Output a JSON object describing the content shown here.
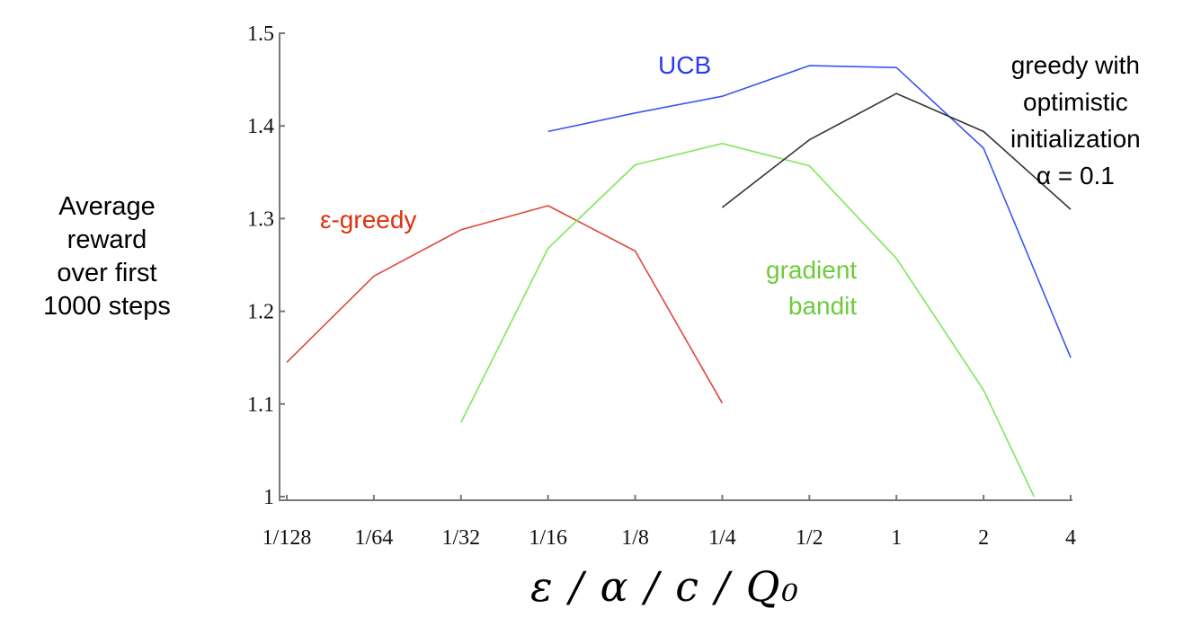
{
  "chart_data": {
    "type": "line",
    "title": "",
    "xlabel": "ε / α / c / Q0",
    "ylabel": "Average reward over first 1000 steps",
    "ylim": [
      1.0,
      1.5
    ],
    "yticks": [
      "1",
      "1.1",
      "1.2",
      "1.3",
      "1.4",
      "1.5"
    ],
    "ytick_values": [
      1.0,
      1.1,
      1.2,
      1.3,
      1.4,
      1.5
    ],
    "categories": [
      "1/128",
      "1/64",
      "1/32",
      "1/16",
      "1/8",
      "1/4",
      "1/2",
      "1",
      "2",
      "4"
    ],
    "grid": false,
    "legend_position": "inline annotations",
    "series": [
      {
        "name": "ε-greedy",
        "color": "#e0473a",
        "label_color": "#e03010",
        "x_index": [
          0,
          1,
          2,
          3,
          4,
          5
        ],
        "values": [
          1.145,
          1.238,
          1.288,
          1.314,
          1.265,
          1.101
        ]
      },
      {
        "name": "gradient bandit",
        "color": "#7ee85a",
        "label_color": "#6ccc3a",
        "x_index": [
          2,
          3,
          4,
          5,
          6,
          7,
          8,
          8.58
        ],
        "values": [
          1.08,
          1.268,
          1.358,
          1.381,
          1.357,
          1.257,
          1.115,
          1.0
        ]
      },
      {
        "name": "UCB",
        "color": "#3a55f0",
        "label_color": "#2a3cf0",
        "x_index": [
          3,
          4,
          5,
          6,
          7,
          8,
          9
        ],
        "values": [
          1.394,
          1.414,
          1.432,
          1.465,
          1.463,
          1.376,
          1.15
        ]
      },
      {
        "name": "greedy with optimistic initialization α = 0.1",
        "color": "#333333",
        "label_color": "#000000",
        "x_index": [
          5,
          6,
          7,
          8,
          9
        ],
        "values": [
          1.312,
          1.385,
          1.435,
          1.394,
          1.31
        ]
      }
    ]
  },
  "labels": {
    "ylabel_lines": [
      "Average",
      "reward",
      "over first",
      "1000 steps"
    ],
    "xlabel": "ε / α / c / Q₀",
    "eps_greedy": "ε-greedy",
    "ucb": "UCB",
    "gradient_lines": [
      "gradient",
      "bandit"
    ],
    "optimistic_lines": [
      "greedy with",
      "optimistic",
      "initialization",
      "α = 0.1"
    ]
  }
}
